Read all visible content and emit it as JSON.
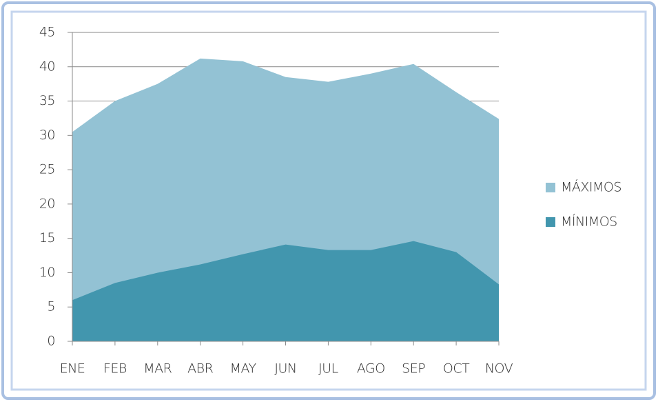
{
  "chart_data": {
    "type": "area",
    "categories": [
      "ENE",
      "FEB",
      "MAR",
      "ABR",
      "MAY",
      "JUN",
      "JUL",
      "AGO",
      "SEP",
      "OCT",
      "NOV"
    ],
    "series": [
      {
        "name": "MÁXIMOS",
        "color": "#93c2d4",
        "values": [
          30.5,
          35,
          37.5,
          41.2,
          40.8,
          38.5,
          37.8,
          39,
          40.4,
          36.3,
          32.4
        ]
      },
      {
        "name": "MÍNIMOS",
        "color": "#4296ae",
        "values": [
          6,
          8.5,
          10,
          11.2,
          12.7,
          14.1,
          13.3,
          13.3,
          14.6,
          13,
          8.3
        ]
      }
    ],
    "ylim": [
      0,
      45
    ],
    "yticks": [
      0,
      5,
      10,
      15,
      20,
      25,
      30,
      35,
      40,
      45
    ],
    "grid": true,
    "legend": "right"
  }
}
